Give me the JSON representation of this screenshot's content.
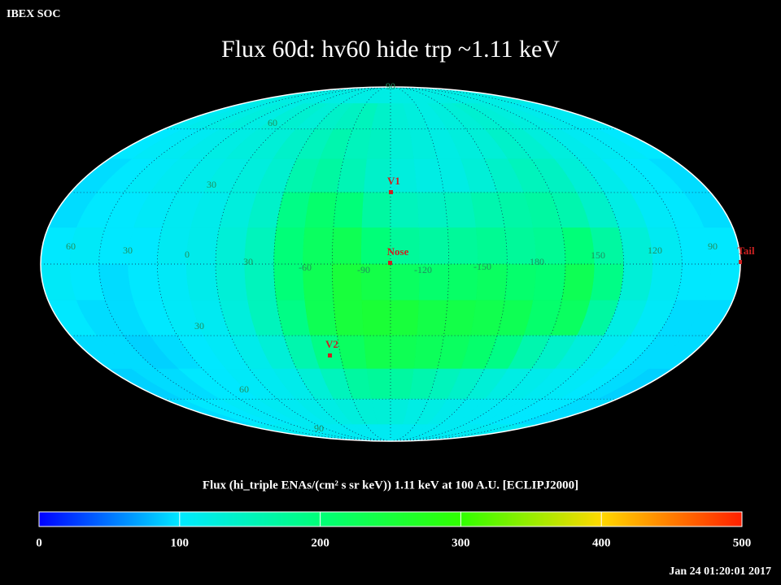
{
  "header": {
    "source": "IBEX SOC",
    "title": "Flux   60d: hv60 hide trp ~1.11 keV",
    "timestamp": "Jan 24 01:20:01 2017"
  },
  "map": {
    "values": [
      [
        120,
        120,
        120,
        120,
        120,
        120,
        120,
        120,
        120,
        120,
        120,
        120,
        120,
        120,
        120,
        120,
        120,
        120,
        120,
        120,
        120,
        120,
        120,
        120
      ],
      [
        110,
        115,
        120,
        125,
        120,
        130,
        135,
        130,
        140,
        145,
        150,
        140,
        130,
        125,
        120,
        125,
        130,
        135,
        130,
        125,
        120,
        115,
        110,
        110
      ],
      [
        100,
        105,
        110,
        115,
        120,
        125,
        130,
        140,
        150,
        160,
        150,
        145,
        130,
        125,
        120,
        125,
        130,
        140,
        135,
        125,
        115,
        110,
        105,
        100
      ],
      [
        95,
        100,
        105,
        110,
        115,
        120,
        125,
        135,
        160,
        170,
        155,
        140,
        125,
        120,
        120,
        130,
        140,
        150,
        145,
        130,
        115,
        105,
        100,
        95
      ],
      [
        95,
        100,
        100,
        105,
        110,
        115,
        125,
        140,
        190,
        210,
        200,
        170,
        150,
        145,
        150,
        160,
        165,
        170,
        160,
        140,
        120,
        105,
        100,
        95
      ],
      [
        100,
        105,
        100,
        100,
        110,
        115,
        130,
        150,
        200,
        220,
        230,
        200,
        175,
        170,
        175,
        180,
        175,
        180,
        200,
        170,
        130,
        110,
        100,
        100
      ],
      [
        105,
        100,
        95,
        100,
        105,
        115,
        130,
        150,
        200,
        230,
        250,
        240,
        220,
        210,
        215,
        220,
        210,
        205,
        230,
        190,
        130,
        110,
        100,
        100
      ],
      [
        100,
        95,
        95,
        100,
        105,
        110,
        125,
        150,
        190,
        230,
        250,
        255,
        250,
        240,
        240,
        235,
        230,
        210,
        220,
        170,
        120,
        105,
        95,
        95
      ],
      [
        95,
        95,
        90,
        95,
        100,
        105,
        115,
        130,
        160,
        190,
        220,
        235,
        230,
        225,
        220,
        210,
        190,
        160,
        140,
        125,
        110,
        100,
        95,
        95
      ],
      [
        90,
        95,
        95,
        100,
        100,
        105,
        110,
        115,
        130,
        150,
        170,
        175,
        170,
        160,
        150,
        140,
        130,
        120,
        115,
        110,
        105,
        100,
        95,
        90
      ],
      [
        95,
        100,
        100,
        105,
        105,
        110,
        110,
        115,
        120,
        125,
        130,
        130,
        125,
        120,
        120,
        115,
        110,
        110,
        105,
        105,
        100,
        100,
        95,
        95
      ],
      [
        110,
        110,
        110,
        110,
        110,
        110,
        110,
        110,
        110,
        110,
        110,
        110,
        110,
        110,
        110,
        110,
        110,
        110,
        110,
        110,
        110,
        110,
        110,
        110
      ]
    ],
    "lon_labels": [
      "60",
      "30",
      "0",
      "30",
      "-60",
      "-90",
      "-120",
      "-150",
      "180",
      "150",
      "120",
      "90"
    ],
    "lat_labels": [
      "90",
      "60",
      "30",
      "30",
      "60",
      "90"
    ],
    "markers": [
      "V1",
      "Nose",
      "V2",
      "Tail"
    ]
  },
  "colorbar": {
    "label": "Flux (hi_triple ENAs/(cm² s sr keV))  1.11 keV at 100 A.U. [ECLIPJ2000]",
    "range": [
      0,
      500
    ],
    "ticks": [
      0,
      100,
      200,
      300,
      400,
      500
    ],
    "stops": [
      {
        "value": 0,
        "color": "#0000ff"
      },
      {
        "value": 100,
        "color": "#00e8ff"
      },
      {
        "value": 200,
        "color": "#00ff78"
      },
      {
        "value": 300,
        "color": "#30ff00"
      },
      {
        "value": 400,
        "color": "#ffd800"
      },
      {
        "value": 500,
        "color": "#ff2000"
      }
    ]
  }
}
